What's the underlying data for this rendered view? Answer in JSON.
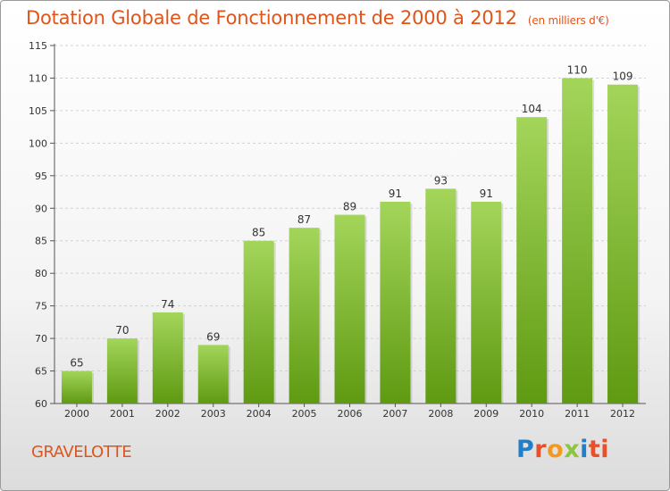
{
  "header": {
    "title": "Dotation Globale de Fonctionnement de 2000 à 2012",
    "unit": "(en milliers d'€)"
  },
  "footer": {
    "city": "GRAVELOTTE",
    "brand_letters": [
      "P",
      "r",
      "o",
      "x",
      "i",
      "ti"
    ]
  },
  "colors": {
    "accent": "#e0541a",
    "bar_top": "#a3d55a",
    "bar_bottom": "#5f9a12"
  },
  "chart_data": {
    "type": "bar",
    "categories": [
      "2000",
      "2001",
      "2002",
      "2003",
      "2004",
      "2005",
      "2006",
      "2007",
      "2008",
      "2009",
      "2010",
      "2011",
      "2012"
    ],
    "values": [
      65,
      70,
      74,
      69,
      85,
      87,
      89,
      91,
      93,
      91,
      104,
      110,
      109
    ],
    "data_labels": [
      "65",
      "70",
      "74",
      "69",
      "85",
      "87",
      "89",
      "91",
      "93",
      "91",
      "104",
      "110",
      "109"
    ],
    "ylim": [
      60,
      115
    ],
    "yticks": [
      60,
      65,
      70,
      75,
      80,
      85,
      90,
      95,
      100,
      105,
      110,
      115
    ],
    "grid": true,
    "xlabel": "",
    "ylabel": ""
  }
}
